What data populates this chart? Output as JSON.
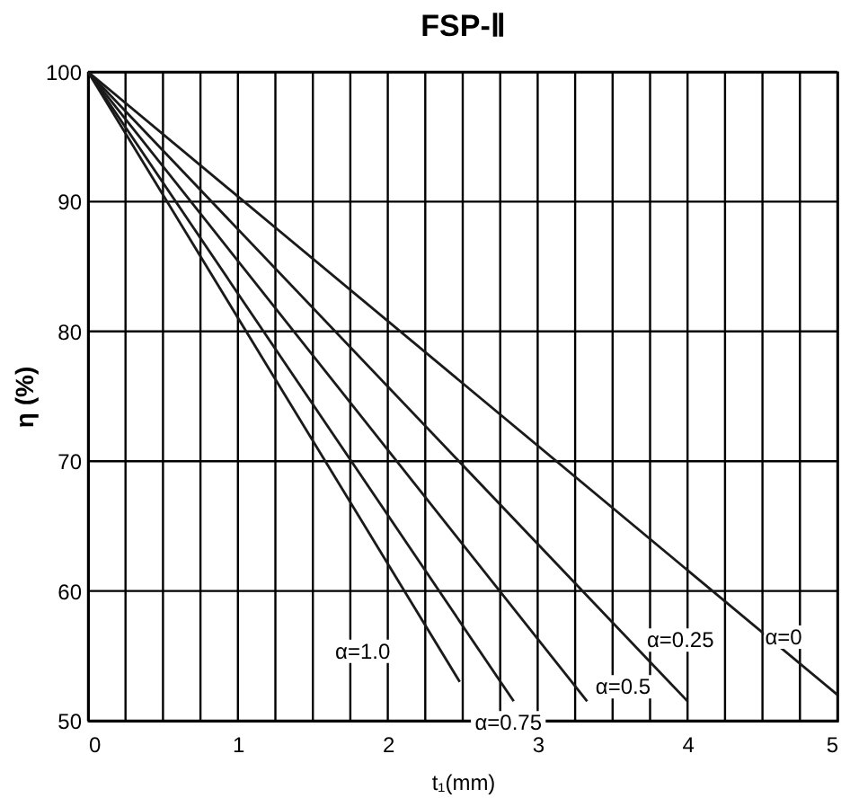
{
  "chart_data": {
    "type": "line",
    "title": "FSP-Ⅱ",
    "xlabel": "t₁(mm)",
    "ylabel": "η (%)",
    "xlim": [
      0,
      5
    ],
    "ylim": [
      50,
      100
    ],
    "xticks": [
      0,
      {
        "value": 0.25,
        "label": null
      },
      {
        "value": 0.5,
        "label": null
      },
      {
        "value": 0.75,
        "label": null
      },
      1,
      {
        "value": 1.25,
        "label": null
      },
      {
        "value": 1.5,
        "label": null
      },
      {
        "value": 1.75,
        "label": null
      },
      2,
      {
        "value": 2.25,
        "label": null
      },
      {
        "value": 2.5,
        "label": null
      },
      {
        "value": 2.75,
        "label": null
      },
      3,
      {
        "value": 3.25,
        "label": null
      },
      {
        "value": 3.5,
        "label": null
      },
      {
        "value": 3.75,
        "label": null
      },
      4,
      {
        "value": 4.25,
        "label": null
      },
      {
        "value": 4.5,
        "label": null
      },
      {
        "value": 4.75,
        "label": null
      },
      5
    ],
    "yticks": [
      50,
      60,
      70,
      80,
      90,
      100
    ],
    "grid": true,
    "marker": "none",
    "line_style": "solid",
    "series": [
      {
        "color": "#1a1a1a",
        "x": [
          0,
          5
        ],
        "values": [
          100,
          52
        ]
      },
      {
        "color": "#1a1a1a",
        "x": [
          0,
          4
        ],
        "values": [
          100,
          51.5
        ]
      },
      {
        "color": "#1a1a1a",
        "x": [
          0,
          3.33
        ],
        "values": [
          100,
          51.5
        ]
      },
      {
        "color": "#1a1a1a",
        "x": [
          0,
          2.84
        ],
        "values": [
          100,
          51.5
        ]
      },
      {
        "color": "#1a1a1a",
        "x": [
          0,
          2.48
        ],
        "values": [
          100,
          53
        ]
      }
    ],
    "annotations": [
      "α=0",
      "α=0.25",
      "α=0.5",
      "α=0.75",
      "α=1.0"
    ]
  }
}
